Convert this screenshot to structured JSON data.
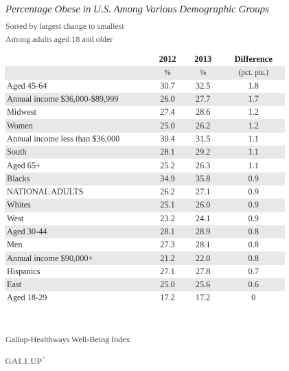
{
  "title": "Percentage Obese in U.S. Among Various Demographic Groups",
  "subtitles": [
    "Sorted by largest change to smallest",
    "Among adults aged 18 and older"
  ],
  "source": "Gallup-Healthways Well-Being Index",
  "logo": "GALLUP",
  "logo_mark": "®",
  "columns": {
    "c2012": "2012",
    "c2013": "2013",
    "diff": "Difference"
  },
  "units": {
    "c2012": "%",
    "c2013": "%",
    "diff": "(pct. pts.)"
  },
  "chart_data": {
    "type": "table",
    "title": "Percentage Obese in U.S. Among Various Demographic Groups",
    "columns": [
      "2012",
      "2013",
      "Difference"
    ],
    "units": [
      "%",
      "%",
      "(pct. pts.)"
    ],
    "rows": [
      {
        "group": "Aged 45-64",
        "y2012": "30.7",
        "y2013": "32.5",
        "diff": "1.8"
      },
      {
        "group": "Annual income $36,000-$89,999",
        "y2012": "26.0",
        "y2013": "27.7",
        "diff": "1.7"
      },
      {
        "group": "Midwest",
        "y2012": "27.4",
        "y2013": "28.6",
        "diff": "1.2"
      },
      {
        "group": "Women",
        "y2012": "25.0",
        "y2013": "26.2",
        "diff": "1.2"
      },
      {
        "group": "Annual income less than $36,000",
        "y2012": "30.4",
        "y2013": "31.5",
        "diff": "1.1"
      },
      {
        "group": "South",
        "y2012": "28.1",
        "y2013": "29.2",
        "diff": "1.1"
      },
      {
        "group": "Aged 65+",
        "y2012": "25.2",
        "y2013": "26.3",
        "diff": "1.1"
      },
      {
        "group": "Blacks",
        "y2012": "34.9",
        "y2013": "35.8",
        "diff": "0.9"
      },
      {
        "group": "NATIONAL ADULTS",
        "y2012": "26.2",
        "y2013": "27.1",
        "diff": "0.9"
      },
      {
        "group": "Whites",
        "y2012": "25.1",
        "y2013": "26.0",
        "diff": "0.9"
      },
      {
        "group": "West",
        "y2012": "23.2",
        "y2013": "24.1",
        "diff": "0.9"
      },
      {
        "group": "Aged 30-44",
        "y2012": "28.1",
        "y2013": "28.9",
        "diff": "0.8"
      },
      {
        "group": "Men",
        "y2012": "27.3",
        "y2013": "28.1",
        "diff": "0.8"
      },
      {
        "group": "Annual income $90,000+",
        "y2012": "21.2",
        "y2013": "22.0",
        "diff": "0.8"
      },
      {
        "group": "Hispanics",
        "y2012": "27.1",
        "y2013": "27.8",
        "diff": "0.7"
      },
      {
        "group": "East",
        "y2012": "25.0",
        "y2013": "25.6",
        "diff": "0.6"
      },
      {
        "group": "Aged 18-29",
        "y2012": "17.2",
        "y2013": "17.2",
        "diff": "0"
      }
    ]
  },
  "colors": {
    "stripe": "#e8e8e8",
    "text": "#333333",
    "logo": "#888888"
  }
}
